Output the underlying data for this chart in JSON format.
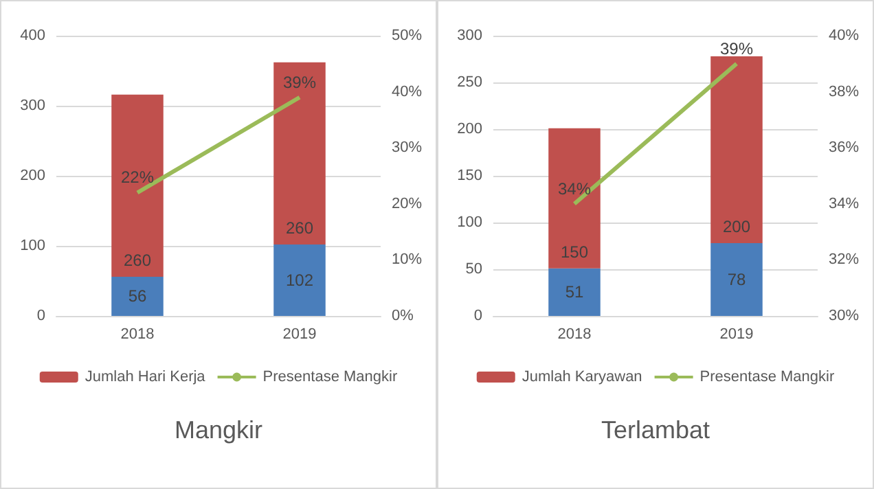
{
  "chart_data": [
    {
      "type": "bar",
      "title": "Mangkir",
      "categories": [
        "2018",
        "2019"
      ],
      "stacked": true,
      "ylim": [
        0,
        400
      ],
      "yticks": [
        0,
        100,
        200,
        300,
        400
      ],
      "y2lim": [
        0,
        50
      ],
      "y2ticks": [
        {
          "value": 0,
          "label": "0%"
        },
        {
          "value": 10,
          "label": "10%"
        },
        {
          "value": 20,
          "label": "20%"
        },
        {
          "value": 30,
          "label": "30%"
        },
        {
          "value": 40,
          "label": "40%"
        },
        {
          "value": 50,
          "label": "50%"
        }
      ],
      "grid": "y",
      "legend": "bottom",
      "series": [
        {
          "color": "#4a7ebb",
          "values": [
            56,
            102
          ],
          "value_labels": [
            "56",
            "102"
          ]
        },
        {
          "name": "Jumlah Hari Kerja",
          "color": "#c0504d",
          "values": [
            260,
            260
          ],
          "value_labels": [
            "260",
            "260"
          ]
        },
        {
          "name": "Presentase Mangkir",
          "type": "line",
          "axis": "y2",
          "color": "#9bbb59",
          "values": [
            22,
            39
          ],
          "value_labels": [
            "22%",
            "39%"
          ],
          "marker": "none"
        }
      ]
    },
    {
      "type": "bar",
      "title": "Terlambat",
      "categories": [
        "2018",
        "2019"
      ],
      "stacked": true,
      "ylim": [
        0,
        300
      ],
      "yticks": [
        0,
        50,
        100,
        150,
        200,
        250,
        300
      ],
      "y2lim": [
        30,
        40
      ],
      "y2ticks": [
        {
          "value": 30,
          "label": "30%"
        },
        {
          "value": 32,
          "label": "32%"
        },
        {
          "value": 34,
          "label": "34%"
        },
        {
          "value": 36,
          "label": "36%"
        },
        {
          "value": 38,
          "label": "38%"
        },
        {
          "value": 40,
          "label": "40%"
        }
      ],
      "grid": "y",
      "legend": "bottom",
      "series": [
        {
          "color": "#4a7ebb",
          "values": [
            51,
            78
          ],
          "value_labels": [
            "51",
            "78"
          ]
        },
        {
          "name": "Jumlah Karyawan",
          "color": "#c0504d",
          "values": [
            150,
            200
          ],
          "value_labels": [
            "150",
            "200"
          ]
        },
        {
          "name": "Presentase Mangkir",
          "type": "line",
          "axis": "y2",
          "color": "#9bbb59",
          "values": [
            34,
            39
          ],
          "value_labels": [
            "34%",
            "39%"
          ],
          "marker": "none"
        }
      ]
    }
  ]
}
